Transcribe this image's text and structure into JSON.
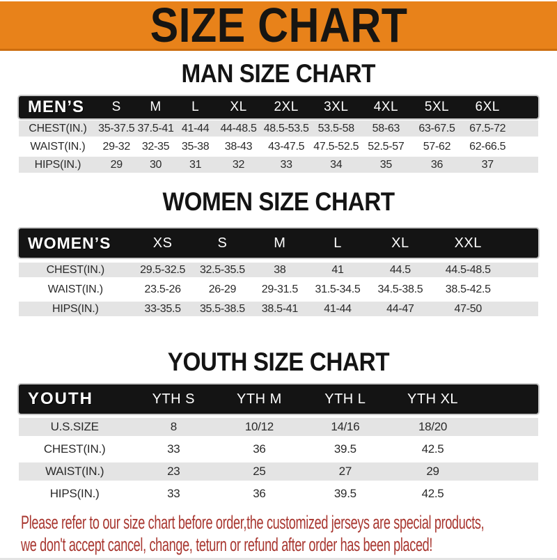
{
  "banner": {
    "title": "SIZE CHART"
  },
  "sections": [
    {
      "id": "men",
      "heading": "MAN SIZE CHART",
      "header": {
        "label": "MEN’S",
        "columns": [
          "S",
          "M",
          "L",
          "XL",
          "2XL",
          "3XL",
          "4XL",
          "5XL",
          "6XL"
        ]
      },
      "rows": [
        {
          "label": "CHEST(IN.)",
          "values": [
            "35-37.5",
            "37.5-41",
            "41-44",
            "44-48.5",
            "48.5-53.5",
            "53.5-58",
            "58-63",
            "63-67.5",
            "67.5-72"
          ]
        },
        {
          "label": "WAIST(IN.)",
          "values": [
            "29-32",
            "32-35",
            "35-38",
            "38-43",
            "43-47.5",
            "47.5-52.5",
            "52.5-57",
            "57-62",
            "62-66.5"
          ]
        },
        {
          "label": "HIPS(IN.)",
          "values": [
            "29",
            "30",
            "31",
            "32",
            "33",
            "34",
            "35",
            "36",
            "37"
          ]
        }
      ]
    },
    {
      "id": "women",
      "heading": "WOMEN SIZE CHART",
      "header": {
        "label": "WOMEN’S",
        "columns": [
          "XS",
          "S",
          "M",
          "L",
          "XL",
          "XXL"
        ]
      },
      "rows": [
        {
          "label": "CHEST(IN.)",
          "values": [
            "29.5-32.5",
            "32.5-35.5",
            "38",
            "41",
            "44.5",
            "44.5-48.5"
          ]
        },
        {
          "label": "WAIST(IN.)",
          "values": [
            "23.5-26",
            "26-29",
            "29-31.5",
            "31.5-34.5",
            "34.5-38.5",
            "38.5-42.5"
          ]
        },
        {
          "label": "HIPS(IN.)",
          "values": [
            "33-35.5",
            "35.5-38.5",
            "38.5-41",
            "41-44",
            "44-47",
            "47-50"
          ]
        }
      ]
    },
    {
      "id": "youth",
      "heading": "YOUTH SIZE CHART",
      "header": {
        "label": "YOUTH",
        "columns": [
          "YTH S",
          "YTH M",
          "YTH L",
          "YTH XL"
        ]
      },
      "rows": [
        {
          "label": "U.S.SIZE",
          "values": [
            "8",
            "10/12",
            "14/16",
            "18/20"
          ]
        },
        {
          "label": "CHEST(IN.)",
          "values": [
            "33",
            "36",
            "39.5",
            "42.5"
          ]
        },
        {
          "label": "WAIST(IN.)",
          "values": [
            "23",
            "25",
            "27",
            "29"
          ]
        },
        {
          "label": "HIPS(IN.)",
          "values": [
            "33",
            "36",
            "39.5",
            "42.5"
          ]
        }
      ]
    }
  ],
  "footer": {
    "line1": "Please refer to our size chart before order,the customized jerseys are special products,",
    "line2": "we don't accept cancel, change, teturn or refund after order has been placed!"
  },
  "colors": {
    "banner_orange": "#E8821A",
    "band_black": "#141414",
    "row_gray": "#E4E4E4",
    "footer_red": "#A8362F"
  }
}
